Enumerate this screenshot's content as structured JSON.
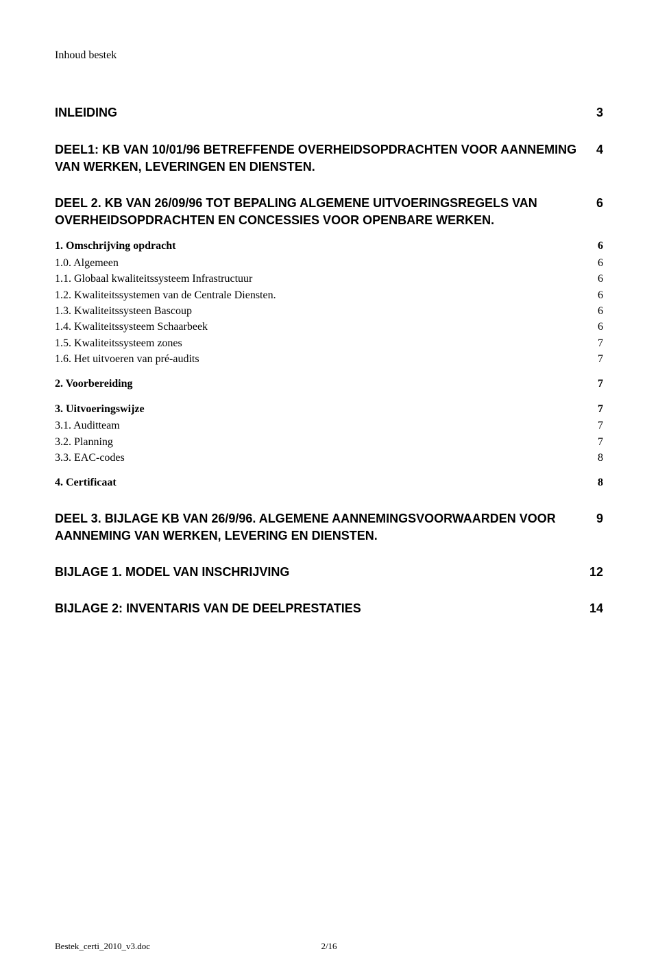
{
  "header": "Inhoud bestek",
  "toc": [
    {
      "level": "h1",
      "label": "INLEIDING",
      "page": "3"
    },
    {
      "level": "h1",
      "label": "DEEL1: KB VAN 10/01/96 BETREFFENDE OVERHEIDSOPDRACHTEN VOOR AANNEMING VAN WERKEN, LEVERINGEN EN DIENSTEN.",
      "page": "4"
    },
    {
      "level": "h1",
      "label": "DEEL 2. KB VAN 26/09/96 TOT BEPALING ALGEMENE UITVOERINGSREGELS VAN OVERHEIDSOPDRACHTEN EN CONCESSIES VOOR OPENBARE WERKEN.",
      "page": "6"
    },
    {
      "level": "h2",
      "label": "1. Omschrijving opdracht",
      "page": "6"
    },
    {
      "level": "entry",
      "label": "1.0. Algemeen",
      "page": "6"
    },
    {
      "level": "entry",
      "label": "1.1. Globaal kwaliteitssysteem Infrastructuur",
      "page": "6"
    },
    {
      "level": "entry",
      "label": "1.2. Kwaliteitssystemen van de Centrale Diensten.",
      "page": "6"
    },
    {
      "level": "entry",
      "label": "1.3. Kwaliteitssysteen Bascoup",
      "page": "6"
    },
    {
      "level": "entry",
      "label": "1.4. Kwaliteitssysteem Schaarbeek",
      "page": "6"
    },
    {
      "level": "entry",
      "label": "1.5. Kwaliteitssysteem zones",
      "page": "7"
    },
    {
      "level": "entry",
      "label": "1.6. Het uitvoeren van pré-audits",
      "page": "7"
    },
    {
      "level": "h2",
      "label": "2. Voorbereiding",
      "page": "7"
    },
    {
      "level": "h2",
      "label": "3. Uitvoeringswijze",
      "page": "7"
    },
    {
      "level": "entry",
      "label": "3.1. Auditteam",
      "page": "7"
    },
    {
      "level": "entry",
      "label": "3.2. Planning",
      "page": "7"
    },
    {
      "level": "entry",
      "label": "3.3. EAC-codes",
      "page": "8"
    },
    {
      "level": "h2",
      "label": "4. Certificaat",
      "page": "8"
    },
    {
      "level": "h1",
      "label": "DEEL 3. BIJLAGE KB VAN 26/9/96. ALGEMENE AANNEMINGSVOORWAARDEN VOOR AANNEMING VAN WERKEN, LEVERING EN DIENSTEN.",
      "page": "9"
    },
    {
      "level": "h1",
      "label": "BIJLAGE 1. MODEL VAN INSCHRIJVING",
      "page": "12"
    },
    {
      "level": "h1",
      "label": "BIJLAGE 2: INVENTARIS VAN DE DEELPRESTATIES",
      "page": "14"
    }
  ],
  "footer": {
    "filename": "Bestek_certi_2010_v3.doc",
    "pagenum": "2/16"
  }
}
